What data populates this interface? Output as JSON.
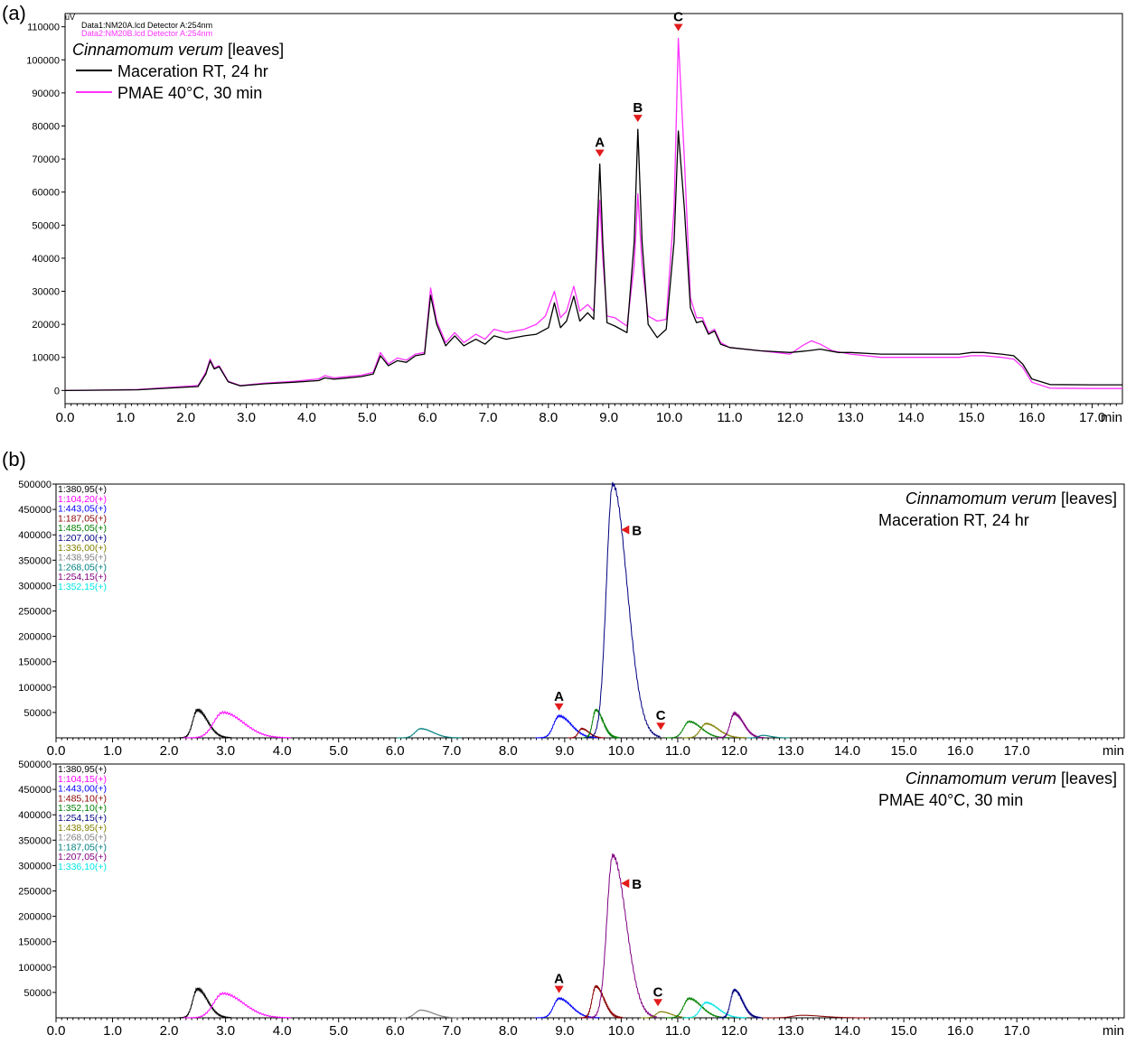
{
  "chart_data": [
    {
      "panel": "(a)",
      "type": "line",
      "xlabel": "min",
      "ylabel": "uV",
      "xlim": [
        0,
        17.5
      ],
      "ylim": [
        -4000,
        114000
      ],
      "xticks": [
        "0.0",
        "1.0",
        "2.0",
        "3.0",
        "4.0",
        "5.0",
        "6.0",
        "7.0",
        "8.0",
        "9.0",
        "10.0",
        "11.0",
        "12.0",
        "13.0",
        "14.0",
        "15.0",
        "16.0",
        "17.0"
      ],
      "yticks": [
        "0",
        "10000",
        "20000",
        "30000",
        "40000",
        "50000",
        "60000",
        "70000",
        "80000",
        "90000",
        "100000",
        "110000"
      ],
      "header": [
        "Data1:NM20A.lcd Detector A:254nm",
        "Data2:NM20B.lcd Detector A:254nm"
      ],
      "legend_title_species": "Cinnamomum verum",
      "legend_title_rest": " [leaves]",
      "series": [
        {
          "name": "Maceration RT, 24 hr",
          "color": "#000000",
          "points": [
            [
              0,
              0
            ],
            [
              1.2,
              200
            ],
            [
              2.2,
              1200
            ],
            [
              2.33,
              5000
            ],
            [
              2.4,
              9000
            ],
            [
              2.47,
              6500
            ],
            [
              2.55,
              7200
            ],
            [
              2.7,
              2600
            ],
            [
              2.9,
              1400
            ],
            [
              3.3,
              2000
            ],
            [
              3.8,
              2500
            ],
            [
              4.2,
              3000
            ],
            [
              4.3,
              3800
            ],
            [
              4.45,
              3400
            ],
            [
              4.9,
              4200
            ],
            [
              5.1,
              5000
            ],
            [
              5.22,
              10500
            ],
            [
              5.35,
              7500
            ],
            [
              5.5,
              9000
            ],
            [
              5.65,
              8500
            ],
            [
              5.8,
              10500
            ],
            [
              5.95,
              11000
            ],
            [
              6.05,
              28800
            ],
            [
              6.15,
              20000
            ],
            [
              6.3,
              13500
            ],
            [
              6.45,
              16500
            ],
            [
              6.6,
              13500
            ],
            [
              6.8,
              15500
            ],
            [
              6.95,
              14000
            ],
            [
              7.1,
              16500
            ],
            [
              7.3,
              15500
            ],
            [
              7.6,
              16500
            ],
            [
              7.8,
              17000
            ],
            [
              8.0,
              19000
            ],
            [
              8.1,
              26500
            ],
            [
              8.2,
              19000
            ],
            [
              8.3,
              21000
            ],
            [
              8.42,
              28500
            ],
            [
              8.52,
              21000
            ],
            [
              8.65,
              23500
            ],
            [
              8.75,
              21500
            ],
            [
              8.8,
              45000
            ],
            [
              8.85,
              68500
            ],
            [
              8.9,
              45000
            ],
            [
              8.97,
              20500
            ],
            [
              9.1,
              19500
            ],
            [
              9.3,
              17500
            ],
            [
              9.42,
              45000
            ],
            [
              9.48,
              79000
            ],
            [
              9.55,
              45000
            ],
            [
              9.65,
              20000
            ],
            [
              9.8,
              16000
            ],
            [
              9.95,
              18500
            ],
            [
              10.08,
              45000
            ],
            [
              10.15,
              78500
            ],
            [
              10.25,
              55000
            ],
            [
              10.35,
              25000
            ],
            [
              10.45,
              20500
            ],
            [
              10.55,
              21000
            ],
            [
              10.65,
              17000
            ],
            [
              10.75,
              18000
            ],
            [
              10.85,
              14000
            ],
            [
              11.0,
              13000
            ],
            [
              11.5,
              12000
            ],
            [
              12.0,
              11500
            ],
            [
              12.3,
              12000
            ],
            [
              12.5,
              12500
            ],
            [
              12.8,
              11500
            ],
            [
              13.0,
              11500
            ],
            [
              13.5,
              11000
            ],
            [
              14.0,
              11000
            ],
            [
              14.8,
              11000
            ],
            [
              15.0,
              11500
            ],
            [
              15.2,
              11500
            ],
            [
              15.5,
              11000
            ],
            [
              15.7,
              10500
            ],
            [
              15.85,
              8000
            ],
            [
              16.0,
              3500
            ],
            [
              16.3,
              1800
            ],
            [
              17.0,
              1700
            ],
            [
              17.5,
              1700
            ]
          ]
        },
        {
          "name": "PMAE 40°C, 30 min",
          "color": "#ff33ff",
          "points": [
            [
              0,
              0
            ],
            [
              1.2,
              300
            ],
            [
              2.2,
              1500
            ],
            [
              2.33,
              5500
            ],
            [
              2.4,
              9500
            ],
            [
              2.47,
              6800
            ],
            [
              2.55,
              7500
            ],
            [
              2.7,
              2800
            ],
            [
              2.9,
              1500
            ],
            [
              3.3,
              2200
            ],
            [
              3.8,
              2800
            ],
            [
              4.2,
              3500
            ],
            [
              4.3,
              4500
            ],
            [
              4.45,
              3800
            ],
            [
              4.9,
              4600
            ],
            [
              5.1,
              5500
            ],
            [
              5.22,
              11500
            ],
            [
              5.35,
              8000
            ],
            [
              5.5,
              9800
            ],
            [
              5.65,
              9200
            ],
            [
              5.8,
              11000
            ],
            [
              5.95,
              11500
            ],
            [
              6.05,
              31000
            ],
            [
              6.15,
              21000
            ],
            [
              6.3,
              14500
            ],
            [
              6.45,
              17500
            ],
            [
              6.6,
              14500
            ],
            [
              6.8,
              17000
            ],
            [
              6.95,
              15500
            ],
            [
              7.1,
              18500
            ],
            [
              7.3,
              17500
            ],
            [
              7.6,
              18500
            ],
            [
              7.8,
              20000
            ],
            [
              7.95,
              22500
            ],
            [
              8.1,
              30000
            ],
            [
              8.2,
              22000
            ],
            [
              8.3,
              24000
            ],
            [
              8.42,
              31500
            ],
            [
              8.52,
              24000
            ],
            [
              8.65,
              26000
            ],
            [
              8.75,
              24000
            ],
            [
              8.8,
              40000
            ],
            [
              8.85,
              57500
            ],
            [
              8.9,
              40000
            ],
            [
              8.97,
              22500
            ],
            [
              9.1,
              22000
            ],
            [
              9.3,
              19500
            ],
            [
              9.42,
              38000
            ],
            [
              9.48,
              59500
            ],
            [
              9.55,
              38000
            ],
            [
              9.65,
              22500
            ],
            [
              9.8,
              21000
            ],
            [
              9.95,
              21500
            ],
            [
              10.08,
              55000
            ],
            [
              10.15,
              106500
            ],
            [
              10.25,
              70000
            ],
            [
              10.35,
              28000
            ],
            [
              10.45,
              22000
            ],
            [
              10.55,
              22000
            ],
            [
              10.65,
              17500
            ],
            [
              10.75,
              18500
            ],
            [
              10.85,
              14500
            ],
            [
              11.0,
              13000
            ],
            [
              11.5,
              12000
            ],
            [
              12.0,
              11000
            ],
            [
              12.2,
              13500
            ],
            [
              12.35,
              15000
            ],
            [
              12.5,
              14000
            ],
            [
              12.7,
              12000
            ],
            [
              13.0,
              11000
            ],
            [
              13.5,
              10000
            ],
            [
              14.0,
              10000
            ],
            [
              14.8,
              10000
            ],
            [
              15.0,
              10500
            ],
            [
              15.2,
              10500
            ],
            [
              15.5,
              10000
            ],
            [
              15.7,
              9500
            ],
            [
              15.85,
              7000
            ],
            [
              16.0,
              2500
            ],
            [
              16.3,
              700
            ],
            [
              17.0,
              600
            ],
            [
              17.5,
              600
            ]
          ]
        }
      ],
      "peak_markers": [
        {
          "label": "A",
          "x": 8.85,
          "y": 68500
        },
        {
          "label": "B",
          "x": 9.48,
          "y": 79000
        },
        {
          "label": "C",
          "x": 10.15,
          "y": 106500
        }
      ]
    },
    {
      "panel": "(b)",
      "type": "line",
      "xlabel": "min",
      "xlim": [
        0,
        18.9
      ],
      "ylim": [
        0,
        500000
      ],
      "xticks": [
        "0.0",
        "1.0",
        "2.0",
        "3.0",
        "4.0",
        "5.0",
        "6.0",
        "7.0",
        "8.0",
        "9.0",
        "10.0",
        "11.0",
        "12.0",
        "13.0",
        "14.0",
        "15.0",
        "16.0",
        "17.0"
      ],
      "yticks": [
        "50000",
        "100000",
        "150000",
        "200000",
        "250000",
        "300000",
        "350000",
        "400000",
        "450000",
        "500000"
      ],
      "subpanels": [
        {
          "title_species": "Cinnamomum verum",
          "title_rest": " [leaves]",
          "subtitle": "Maceration RT, 24 hr",
          "channels": [
            {
              "mz": "1:380,95(+)",
              "color": "#000000"
            },
            {
              "mz": "1:104,20(+)",
              "color": "#ff00ff"
            },
            {
              "mz": "1:443,05(+)",
              "color": "#0000ff"
            },
            {
              "mz": "1:187,05(+)",
              "color": "#8b0000"
            },
            {
              "mz": "1:485,05(+)",
              "color": "#008000"
            },
            {
              "mz": "1:207,00(+)",
              "color": "#000080"
            },
            {
              "mz": "1:336,00(+)",
              "color": "#808000"
            },
            {
              "mz": "1:438,95(+)",
              "color": "#808080"
            },
            {
              "mz": "1:268,05(+)",
              "color": "#008080"
            },
            {
              "mz": "1:254,15(+)",
              "color": "#800080"
            },
            {
              "mz": "1:352,15(+)",
              "color": "#00e5e5"
            }
          ],
          "peaks": [
            {
              "x": 2.5,
              "h": 55000,
              "w": 0.1,
              "color": "#000000"
            },
            {
              "x": 2.95,
              "h": 50000,
              "w": 0.2,
              "color": "#ff00ff"
            },
            {
              "x": 6.45,
              "h": 18000,
              "w": 0.12,
              "color": "#008080"
            },
            {
              "x": 8.9,
              "h": 43000,
              "w": 0.12,
              "color": "#0000ff"
            },
            {
              "x": 9.3,
              "h": 18000,
              "w": 0.07,
              "color": "#8b0000"
            },
            {
              "x": 9.55,
              "h": 55000,
              "w": 0.07,
              "color": "#008000"
            },
            {
              "x": 9.85,
              "h": 500000,
              "w": 0.14,
              "color": "#000080"
            },
            {
              "x": 11.2,
              "h": 32000,
              "w": 0.12,
              "color": "#008000"
            },
            {
              "x": 11.5,
              "h": 28000,
              "w": 0.12,
              "color": "#808000"
            },
            {
              "x": 12.0,
              "h": 48000,
              "w": 0.09,
              "color": "#800080"
            },
            {
              "x": 12.5,
              "h": 5000,
              "w": 0.08,
              "color": "#008080"
            }
          ],
          "peak_markers": [
            {
              "label": "A",
              "x": 8.9,
              "y": 43000,
              "orient": "down"
            },
            {
              "label": "B",
              "x": 9.95,
              "y": 410000,
              "orient": "left"
            },
            {
              "label": "C",
              "x": 10.7,
              "y": 5000,
              "orient": "down"
            }
          ]
        },
        {
          "title_species": "Cinnamomum verum",
          "title_rest": " [leaves]",
          "subtitle": "PMAE 40°C, 30 min",
          "channels": [
            {
              "mz": "1:380,95(+)",
              "color": "#000000"
            },
            {
              "mz": "1:104,15(+)",
              "color": "#ff00ff"
            },
            {
              "mz": "1:443,00(+)",
              "color": "#0000ff"
            },
            {
              "mz": "1:485,10(+)",
              "color": "#8b0000"
            },
            {
              "mz": "1:352,10(+)",
              "color": "#008000"
            },
            {
              "mz": "1:254,15(+)",
              "color": "#000080"
            },
            {
              "mz": "1:438,95(+)",
              "color": "#808000"
            },
            {
              "mz": "1:268,05(+)",
              "color": "#808080"
            },
            {
              "mz": "1:187,05(+)",
              "color": "#008080"
            },
            {
              "mz": "1:207,05(+)",
              "color": "#800080"
            },
            {
              "mz": "1:336,10(+)",
              "color": "#00e5e5"
            }
          ],
          "peaks": [
            {
              "x": 2.5,
              "h": 57000,
              "w": 0.1,
              "color": "#000000"
            },
            {
              "x": 2.95,
              "h": 48000,
              "w": 0.2,
              "color": "#ff00ff"
            },
            {
              "x": 6.45,
              "h": 15000,
              "w": 0.12,
              "color": "#808080"
            },
            {
              "x": 8.9,
              "h": 38000,
              "w": 0.12,
              "color": "#0000ff"
            },
            {
              "x": 9.55,
              "h": 62000,
              "w": 0.08,
              "color": "#8b0000"
            },
            {
              "x": 9.85,
              "h": 320000,
              "w": 0.13,
              "color": "#800080"
            },
            {
              "x": 10.7,
              "h": 12000,
              "w": 0.1,
              "color": "#808000"
            },
            {
              "x": 11.2,
              "h": 38000,
              "w": 0.12,
              "color": "#008000"
            },
            {
              "x": 11.5,
              "h": 30000,
              "w": 0.12,
              "color": "#00e5e5"
            },
            {
              "x": 12.0,
              "h": 55000,
              "w": 0.08,
              "color": "#000080"
            },
            {
              "x": 13.2,
              "h": 5000,
              "w": 0.2,
              "color": "#8b0000"
            }
          ],
          "peak_markers": [
            {
              "label": "A",
              "x": 8.9,
              "y": 38000,
              "orient": "down"
            },
            {
              "label": "B",
              "x": 9.95,
              "y": 265000,
              "orient": "left"
            },
            {
              "label": "C",
              "x": 10.65,
              "y": 12000,
              "orient": "down"
            }
          ]
        }
      ]
    }
  ]
}
